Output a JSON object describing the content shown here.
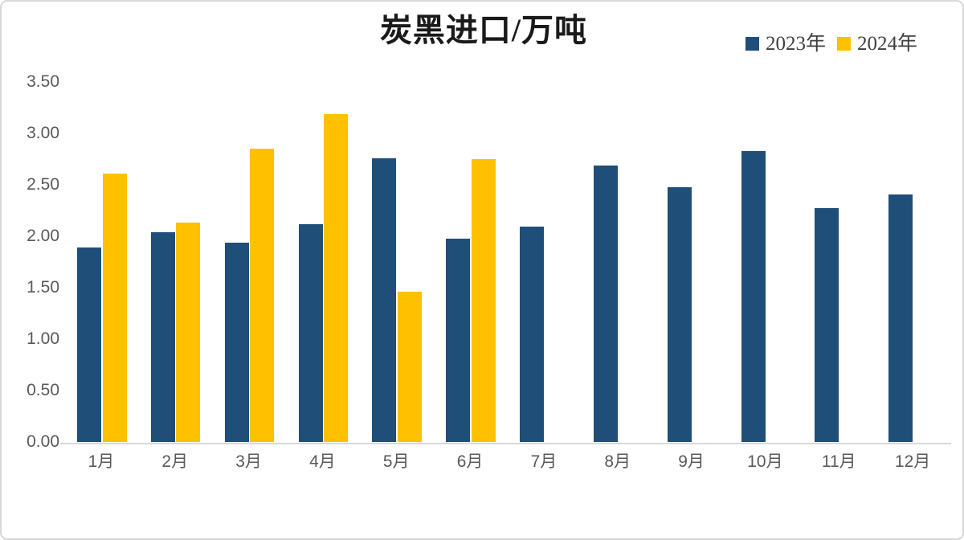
{
  "chart_data": {
    "type": "bar",
    "title": "炭黑进口/万吨",
    "categories": [
      "1月",
      "2月",
      "3月",
      "4月",
      "5月",
      "6月",
      "7月",
      "8月",
      "9月",
      "10月",
      "11月",
      "12月"
    ],
    "series": [
      {
        "name": "2023年",
        "color": "#1F4E79",
        "values": [
          1.89,
          2.04,
          1.94,
          2.12,
          2.76,
          1.98,
          2.09,
          2.69,
          2.48,
          2.83,
          2.27,
          2.41
        ]
      },
      {
        "name": "2024年",
        "color": "#FFC000",
        "values": [
          2.61,
          2.13,
          2.85,
          3.19,
          1.46,
          2.75,
          null,
          null,
          null,
          null,
          null,
          null
        ]
      }
    ],
    "xlabel": "",
    "ylabel": "",
    "ylim": [
      0,
      3.5
    ],
    "ytick_step": 0.5,
    "ytick_labels_top_to_bottom": [
      "3.50",
      "3.00",
      "2.50",
      "2.00",
      "1.50",
      "1.00",
      "0.50",
      "0.00"
    ],
    "grid": false,
    "legend_position": "top-right",
    "axis_label_color": "#595959",
    "axis_line_color": "#d9d9d9"
  }
}
